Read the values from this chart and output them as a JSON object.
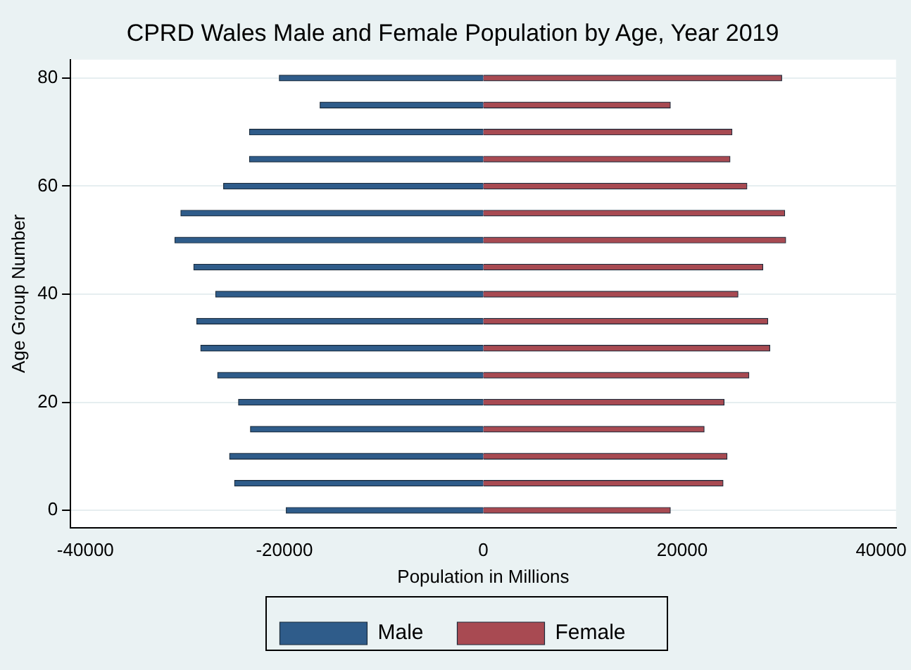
{
  "chart_data": {
    "type": "bar",
    "orientation": "horizontal",
    "title": "CPRD Wales Male and Female Population by Age, Year 2019",
    "xlabel": "Population in Millions",
    "ylabel": "Age Group Number",
    "x": [
      0,
      5,
      10,
      15,
      20,
      25,
      30,
      35,
      40,
      45,
      50,
      55,
      60,
      65,
      70,
      75,
      80
    ],
    "series": [
      {
        "name": "Male",
        "color": "#2f5c8a",
        "values": [
          -19800,
          -25000,
          -25500,
          -23400,
          -24600,
          -26700,
          -28400,
          -28800,
          -26900,
          -29100,
          -31000,
          -30400,
          -26100,
          -23500,
          -23500,
          -16400,
          -20500
        ]
      },
      {
        "name": "Female",
        "color": "#a84a52",
        "values": [
          18800,
          24100,
          24500,
          22200,
          24200,
          26700,
          28800,
          28600,
          25600,
          28100,
          30400,
          30300,
          26500,
          24800,
          25000,
          18800,
          30000
        ]
      }
    ],
    "xlim": [
      -41500,
      41500
    ],
    "xticks": [
      -40000,
      -20000,
      0,
      20000,
      40000
    ],
    "ylim": [
      -3.2,
      83.4
    ],
    "yticks": [
      0,
      20,
      40,
      60,
      80
    ],
    "grid": "y",
    "legend": "bottom",
    "stacked": true
  }
}
